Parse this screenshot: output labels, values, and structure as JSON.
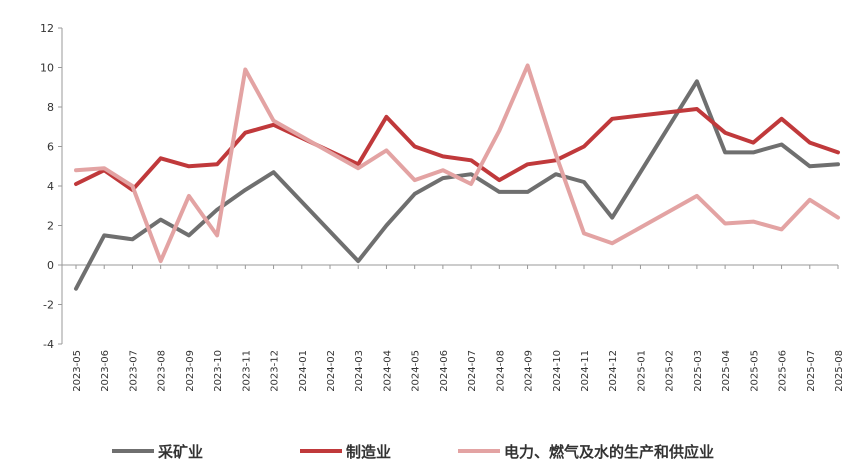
{
  "chart_data": {
    "type": "line",
    "title": "",
    "xlabel": "",
    "ylabel": "",
    "ylim": [
      -4,
      12
    ],
    "yticks": [
      -4,
      -2,
      0,
      2,
      4,
      6,
      8,
      10,
      12
    ],
    "grid": false,
    "legend_position": "bottom",
    "categories": [
      "2023-05",
      "2023-06",
      "2023-07",
      "2023-08",
      "2023-09",
      "2023-10",
      "2023-11",
      "2023-12",
      "2024-01",
      "2024-02",
      "2024-03",
      "2024-04",
      "2024-05",
      "2024-06",
      "2024-07",
      "2024-08",
      "2024-09",
      "2024-10",
      "2024-11",
      "2024-12",
      "2025-01",
      "2025-02",
      "2025-03",
      "2025-04",
      "2025-05",
      "2025-06",
      "2025-07",
      "2025-08"
    ],
    "series": [
      {
        "name": "采矿业",
        "color": "#6f6f6f",
        "values": [
          -1.2,
          1.5,
          1.3,
          2.3,
          1.5,
          2.8,
          3.8,
          4.7,
          null,
          null,
          0.2,
          2.0,
          3.6,
          4.4,
          4.6,
          3.7,
          3.7,
          4.6,
          4.2,
          2.4,
          null,
          null,
          9.3,
          5.7,
          5.7,
          6.1,
          5.0,
          5.1
        ]
      },
      {
        "name": "制造业",
        "color": "#c0393b",
        "values": [
          4.1,
          4.8,
          3.8,
          5.4,
          5.0,
          5.1,
          6.7,
          7.1,
          null,
          null,
          5.1,
          7.5,
          6.0,
          5.5,
          5.3,
          4.3,
          5.1,
          5.3,
          6.0,
          7.4,
          null,
          null,
          7.9,
          6.7,
          6.2,
          7.4,
          6.2,
          5.7
        ]
      },
      {
        "name": "电力、燃气及水的生产和供应业",
        "color": "#e3a3a3",
        "values": [
          4.8,
          4.9,
          4.0,
          0.2,
          3.5,
          1.5,
          9.9,
          7.3,
          null,
          null,
          4.9,
          5.8,
          4.3,
          4.8,
          4.1,
          6.8,
          10.1,
          5.6,
          1.6,
          1.1,
          null,
          null,
          3.5,
          2.1,
          2.2,
          1.8,
          3.3,
          2.4
        ]
      }
    ]
  }
}
